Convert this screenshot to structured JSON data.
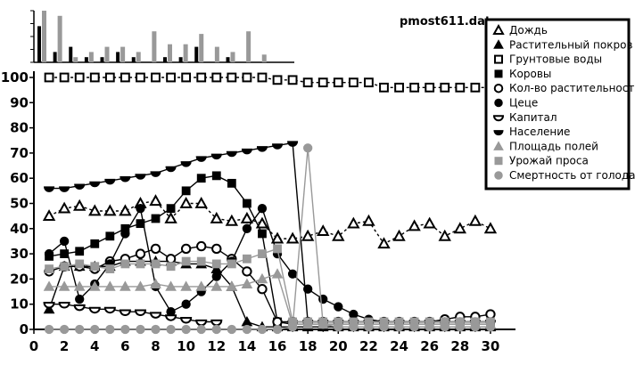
{
  "chart_data": {
    "type": "line",
    "filename": "pmost611.dat",
    "xlim": [
      0,
      31
    ],
    "ylim": [
      0,
      100
    ],
    "xticks": [
      0,
      2,
      4,
      6,
      8,
      10,
      12,
      14,
      16,
      18,
      20,
      22,
      24,
      26,
      28,
      30
    ],
    "yticks": [
      0,
      10,
      20,
      30,
      40,
      50,
      60,
      70,
      80,
      90,
      100
    ],
    "grid": false,
    "legend_position": "top-right",
    "inset_bars": {
      "description": "small bar chart above main plot (precipitation)",
      "black": [
        0.7,
        0.2,
        0.3,
        0.1,
        0.1,
        0.2,
        0.1,
        0.0,
        0.1,
        0.1,
        0.3,
        0.0,
        0.1,
        0.0,
        0.0,
        0.0
      ],
      "gray": [
        1.0,
        0.9,
        0.1,
        0.2,
        0.3,
        0.3,
        0.2,
        0.6,
        0.35,
        0.35,
        0.55,
        0.3,
        0.2,
        0.6,
        0.15,
        0.0
      ]
    },
    "series": [
      {
        "name": "Дождь",
        "marker": "triangle-open",
        "color": "#000000",
        "dash": "3,3",
        "x": [
          1,
          2,
          3,
          4,
          5,
          6,
          7,
          8,
          9,
          10,
          11,
          12,
          13,
          14,
          15,
          16,
          17,
          18,
          19,
          20,
          21,
          22,
          23,
          24,
          25,
          26,
          27,
          28,
          29,
          30
        ],
        "y": [
          45,
          48,
          49,
          47,
          47,
          47,
          50,
          51,
          44,
          50,
          50,
          44,
          43,
          44,
          42,
          36,
          36,
          37,
          39,
          37,
          42,
          43,
          34,
          37,
          41,
          42,
          37,
          40,
          43,
          40
        ]
      },
      {
        "name": "Растительный покров",
        "marker": "triangle-filled",
        "color": "#000000",
        "dash": "",
        "x": [
          1,
          2,
          3,
          4,
          5,
          6,
          7,
          8,
          9,
          10,
          11,
          12,
          13,
          14,
          15,
          16,
          17,
          18,
          19,
          20,
          21,
          22,
          23,
          24,
          25,
          26,
          27,
          28,
          29,
          30
        ],
        "y": [
          8,
          25,
          25,
          25,
          25,
          27,
          27,
          27,
          27,
          26,
          26,
          24,
          17,
          3,
          1,
          1,
          1,
          1,
          1,
          1,
          1,
          1,
          1,
          1,
          1,
          1,
          1,
          1,
          1,
          1
        ]
      },
      {
        "name": "Грунтовые воды",
        "marker": "square-open",
        "color": "#000000",
        "dash": "3,3",
        "x": [
          1,
          2,
          3,
          4,
          5,
          6,
          7,
          8,
          9,
          10,
          11,
          12,
          13,
          14,
          15,
          16,
          17,
          18,
          19,
          20,
          21,
          22,
          23,
          24,
          25,
          26,
          27,
          28,
          29,
          30
        ],
        "y": [
          100,
          100,
          100,
          100,
          100,
          100,
          100,
          100,
          100,
          100,
          100,
          100,
          100,
          100,
          100,
          99,
          99,
          98,
          98,
          98,
          98,
          98,
          96,
          96,
          96,
          96,
          96,
          96,
          96,
          96
        ]
      },
      {
        "name": "Коровы",
        "marker": "square-filled",
        "color": "#000000",
        "dash": "",
        "x": [
          1,
          2,
          3,
          4,
          5,
          6,
          7,
          8,
          9,
          10,
          11,
          12,
          13,
          14,
          15,
          16,
          17,
          18,
          19,
          20,
          21,
          22,
          23,
          24,
          25,
          26,
          27,
          28,
          29,
          30
        ],
        "y": [
          29,
          30,
          31,
          34,
          37,
          40,
          42,
          44,
          48,
          55,
          60,
          61,
          58,
          50,
          38,
          3,
          2,
          2,
          2,
          2,
          2,
          2,
          2,
          2,
          2,
          2,
          2,
          2,
          2,
          2
        ]
      },
      {
        "name": "Кол-во растительности",
        "marker": "circle-open",
        "color": "#000000",
        "dash": "",
        "x": [
          1,
          2,
          3,
          4,
          5,
          6,
          7,
          8,
          9,
          10,
          11,
          12,
          13,
          14,
          15,
          16,
          17,
          18,
          19,
          20,
          21,
          22,
          23,
          24,
          25,
          26,
          27,
          28,
          29,
          30
        ],
        "y": [
          23,
          25,
          25,
          24,
          27,
          28,
          30,
          32,
          28,
          32,
          33,
          32,
          28,
          23,
          16,
          3,
          3,
          3,
          3,
          3,
          3,
          3,
          3,
          3,
          3,
          3,
          4,
          5,
          5,
          6
        ]
      },
      {
        "name": "Цеце",
        "marker": "circle-filled",
        "color": "#000000",
        "dash": "",
        "x": [
          1,
          2,
          3,
          4,
          5,
          6,
          7,
          8,
          9,
          10,
          11,
          12,
          13,
          14,
          15,
          16,
          17,
          18,
          19,
          20,
          21,
          22,
          23,
          24,
          25,
          26,
          27,
          28,
          29,
          30
        ],
        "y": [
          30,
          35,
          12,
          18,
          26,
          38,
          48,
          17,
          7,
          10,
          15,
          21,
          27,
          40,
          48,
          30,
          22,
          16,
          12,
          9,
          6,
          4,
          3,
          3,
          3,
          3,
          3,
          3,
          3,
          3
        ]
      },
      {
        "name": "Капитал",
        "marker": "semicircle-open",
        "color": "#000000",
        "dash": "",
        "x": [
          1,
          2,
          3,
          4,
          5,
          6,
          7,
          8,
          9,
          10,
          11,
          12
        ],
        "y": [
          10,
          10,
          9,
          8,
          8,
          7,
          7,
          6,
          5,
          4,
          3,
          3
        ]
      },
      {
        "name": "Население",
        "marker": "semicircle-filled",
        "color": "#000000",
        "dash": "",
        "x": [
          1,
          2,
          3,
          4,
          5,
          6,
          7,
          8,
          9,
          10,
          11,
          12,
          13,
          14,
          15,
          16,
          17,
          18,
          19,
          20,
          21,
          22,
          23,
          24,
          25,
          26,
          27,
          28,
          29,
          30
        ],
        "y": [
          56,
          56,
          57,
          58,
          59,
          60,
          61,
          62,
          64,
          66,
          68,
          69,
          70,
          71,
          72,
          73,
          74,
          3,
          3,
          3,
          3,
          3,
          3,
          3,
          3,
          3,
          3,
          3,
          3,
          3
        ]
      },
      {
        "name": "Площадь полей",
        "marker": "triangle-filled",
        "color": "#999999",
        "dash": "",
        "x": [
          1,
          2,
          3,
          4,
          5,
          6,
          7,
          8,
          9,
          10,
          11,
          12,
          13,
          14,
          15,
          16,
          17,
          18,
          19,
          20,
          21,
          22,
          23,
          24,
          25,
          26,
          27,
          28,
          29,
          30
        ],
        "y": [
          17,
          17,
          17,
          17,
          17,
          17,
          17,
          18,
          17,
          17,
          17,
          17,
          17,
          18,
          20,
          22,
          2,
          2,
          2,
          2,
          2,
          2,
          2,
          2,
          2,
          2,
          2,
          2,
          2,
          2
        ]
      },
      {
        "name": "Урожай проса",
        "marker": "square-filled",
        "color": "#999999",
        "dash": "",
        "x": [
          1,
          2,
          3,
          4,
          5,
          6,
          7,
          8,
          9,
          10,
          11,
          12,
          13,
          14,
          15,
          16,
          17,
          18,
          19,
          20,
          21,
          22,
          23,
          24,
          25,
          26,
          27,
          28,
          29,
          30
        ],
        "y": [
          24,
          25,
          26,
          25,
          24,
          26,
          26,
          26,
          25,
          27,
          27,
          26,
          26,
          28,
          30,
          32,
          3,
          3,
          3,
          3,
          3,
          3,
          3,
          3,
          3,
          3,
          3,
          3,
          3,
          3
        ]
      },
      {
        "name": "Смертность от голода",
        "marker": "circle-filled",
        "color": "#999999",
        "dash": "",
        "x": [
          1,
          2,
          3,
          4,
          5,
          6,
          7,
          8,
          9,
          10,
          11,
          12,
          13,
          14,
          15,
          16,
          17,
          18,
          19,
          20,
          21,
          22,
          23,
          24,
          25,
          26,
          27,
          28,
          29,
          30
        ],
        "y": [
          0,
          0,
          0,
          0,
          0,
          0,
          0,
          0,
          0,
          0,
          0,
          0,
          0,
          0,
          0,
          0,
          1,
          72,
          2,
          1,
          1,
          1,
          1,
          1,
          1,
          1,
          1,
          1,
          1,
          1
        ]
      }
    ]
  }
}
